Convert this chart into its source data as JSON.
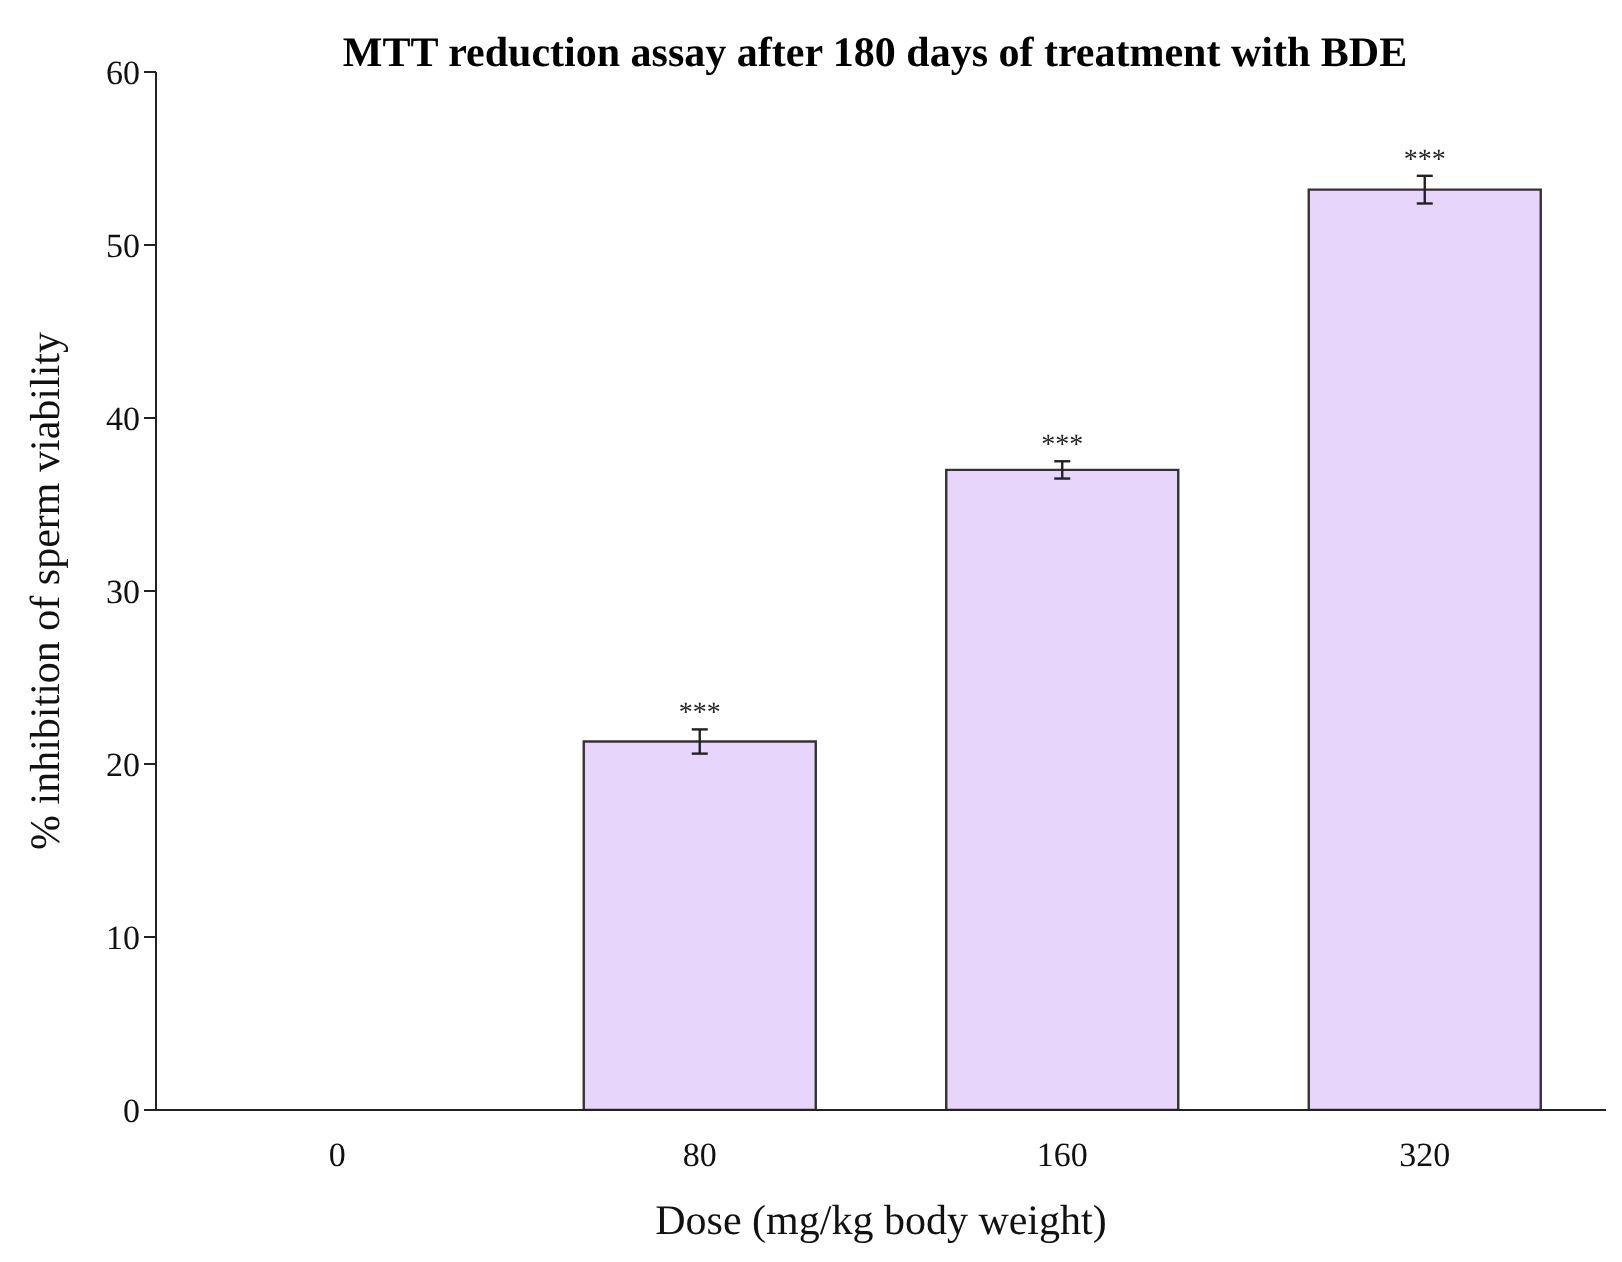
{
  "chart_data": {
    "type": "bar",
    "title": "MTT reduction assay after 180 days of treatment with BDE",
    "xlabel": "Dose (mg/kg body weight)",
    "ylabel": "% inhibition of sperm viability",
    "categories": [
      "0",
      "80",
      "160",
      "320"
    ],
    "values": [
      0,
      21.3,
      37.0,
      53.2
    ],
    "errors": [
      null,
      0.7,
      0.5,
      0.8
    ],
    "value_labels": [
      null,
      "***",
      "***",
      "***"
    ],
    "color": "#e8d5fc",
    "ylim": [
      0,
      60
    ],
    "yticks": [
      0,
      10,
      20,
      30,
      40,
      50,
      60
    ],
    "grid": false,
    "legend": false
  }
}
